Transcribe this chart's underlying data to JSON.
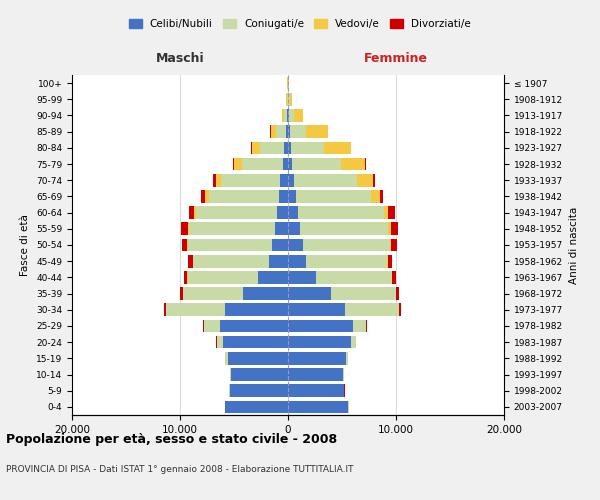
{
  "age_groups": [
    "0-4",
    "5-9",
    "10-14",
    "15-19",
    "20-24",
    "25-29",
    "30-34",
    "35-39",
    "40-44",
    "45-49",
    "50-54",
    "55-59",
    "60-64",
    "65-69",
    "70-74",
    "75-79",
    "80-84",
    "85-89",
    "90-94",
    "95-99",
    "100+"
  ],
  "birth_years": [
    "2003-2007",
    "1998-2002",
    "1993-1997",
    "1988-1992",
    "1983-1987",
    "1978-1982",
    "1973-1977",
    "1968-1972",
    "1963-1967",
    "1958-1962",
    "1953-1957",
    "1948-1952",
    "1943-1947",
    "1938-1942",
    "1933-1937",
    "1928-1932",
    "1923-1927",
    "1918-1922",
    "1913-1917",
    "1908-1912",
    "≤ 1907"
  ],
  "male": {
    "celibi": [
      5800,
      5400,
      5300,
      5600,
      6000,
      6300,
      5800,
      4200,
      2800,
      1800,
      1500,
      1200,
      1000,
      800,
      700,
      500,
      350,
      200,
      80,
      40,
      15
    ],
    "coniugati": [
      20,
      30,
      80,
      200,
      600,
      1500,
      5500,
      5500,
      6500,
      7000,
      7800,
      8000,
      7500,
      6500,
      5500,
      3800,
      2200,
      900,
      300,
      80,
      30
    ],
    "vedovi": [
      5,
      5,
      5,
      5,
      5,
      5,
      5,
      10,
      20,
      30,
      50,
      100,
      200,
      400,
      500,
      700,
      800,
      500,
      200,
      60,
      20
    ],
    "divorziati": [
      5,
      5,
      5,
      10,
      30,
      80,
      200,
      300,
      350,
      400,
      500,
      600,
      500,
      350,
      200,
      100,
      50,
      30,
      20,
      10,
      5
    ]
  },
  "female": {
    "nubili": [
      5600,
      5200,
      5100,
      5400,
      5800,
      6000,
      5300,
      4000,
      2600,
      1700,
      1400,
      1100,
      900,
      700,
      600,
      400,
      300,
      200,
      80,
      40,
      15
    ],
    "coniugate": [
      15,
      25,
      60,
      150,
      500,
      1200,
      5000,
      6000,
      7000,
      7500,
      8000,
      8200,
      8000,
      7000,
      5800,
      4500,
      3000,
      1500,
      500,
      100,
      30
    ],
    "vedove": [
      5,
      5,
      5,
      5,
      5,
      5,
      5,
      10,
      20,
      50,
      100,
      200,
      400,
      800,
      1500,
      2200,
      2500,
      2000,
      800,
      200,
      80
    ],
    "divorziate": [
      5,
      5,
      5,
      10,
      30,
      80,
      200,
      250,
      350,
      400,
      600,
      700,
      600,
      300,
      150,
      100,
      50,
      30,
      20,
      10,
      5
    ]
  },
  "colors": {
    "celibi": "#4472C4",
    "coniugati": "#c8daa6",
    "vedovi": "#f5c842",
    "divorziati": "#CC0000"
  },
  "xlim": 20000,
  "xticks": [
    -20000,
    -10000,
    0,
    10000,
    20000
  ],
  "xticklabels": [
    "20.000",
    "10.000",
    "0",
    "10.000",
    "20.000"
  ],
  "title": "Popolazione per età, sesso e stato civile - 2008",
  "subtitle": "PROVINCIA DI PISA - Dati ISTAT 1° gennaio 2008 - Elaborazione TUTTITALIA.IT",
  "ylabel_left": "Fasce di età",
  "ylabel_right": "Anni di nascita",
  "label_maschi": "Maschi",
  "label_femmine": "Femmine",
  "legend_labels": [
    "Celibi/Nubili",
    "Coniugati/e",
    "Vedovi/e",
    "Divorziati/e"
  ],
  "bg_color": "#f0f0f0",
  "plot_bg": "#ffffff"
}
